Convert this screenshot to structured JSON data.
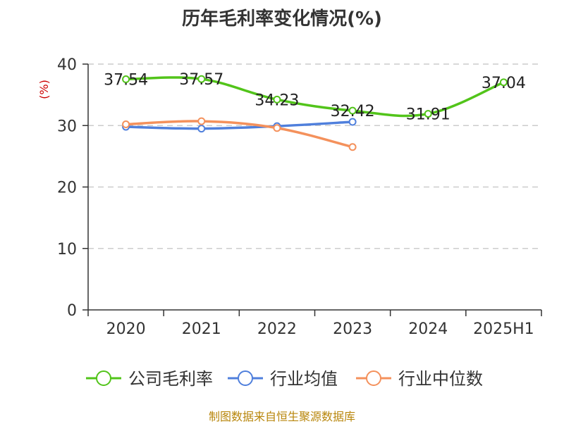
{
  "chart_data": {
    "type": "line",
    "title": "历年毛利率变化情况(%)",
    "ylabel": "(%)",
    "xlabel": "",
    "categories": [
      "2020",
      "2021",
      "2022",
      "2023",
      "2024",
      "2025H1"
    ],
    "ylim": [
      0,
      40
    ],
    "yticks": [
      0,
      10,
      20,
      30,
      40
    ],
    "grid": true,
    "legend_position": "bottom",
    "series": [
      {
        "name": "公司毛利率",
        "color": "#52c41a",
        "values": [
          37.54,
          37.57,
          34.23,
          32.42,
          31.91,
          37.04
        ],
        "labels": [
          "37.54",
          "37.57",
          "34.23",
          "32.42",
          "31.91",
          "37.04"
        ]
      },
      {
        "name": "行业均值",
        "color": "#4f7fdc",
        "values": [
          29.8,
          29.5,
          29.9,
          30.6,
          null,
          null
        ]
      },
      {
        "name": "行业中位数",
        "color": "#f4915c",
        "values": [
          30.2,
          30.7,
          29.6,
          26.5,
          null,
          null
        ]
      }
    ]
  },
  "source_note": "制图数据来自恒生聚源数据库"
}
